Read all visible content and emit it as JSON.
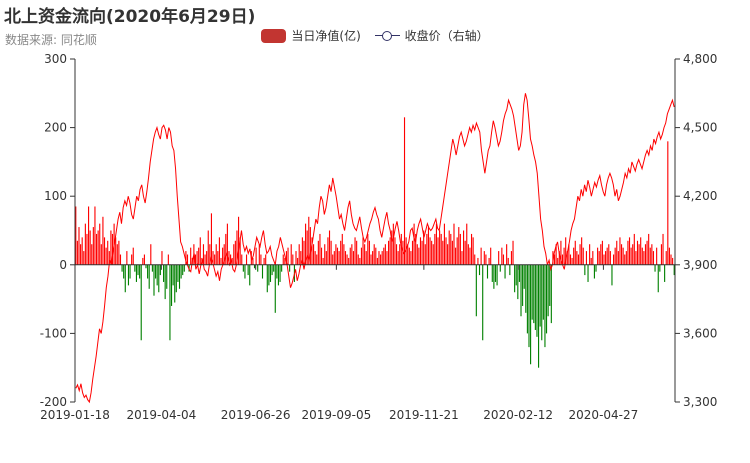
{
  "title": "北上资金流向(2020年6月29日)",
  "subtitle": "数据来源: 同花顺",
  "legend": {
    "bar_label": "当日净值(亿)",
    "line_label": "收盘价（右轴）"
  },
  "colors": {
    "positive_bar": "#ff0000",
    "negative_bar": "#008000",
    "line": "#ff0000",
    "legend_bar": "#c23531",
    "axis": "#333333"
  },
  "chart_data": {
    "type": "bar+line",
    "x_start": "2019-01-18",
    "x_end": "2020-06-29",
    "x_ticks": [
      "2019-01-18",
      "2019-04-04",
      "2019-06-26",
      "2019-09-05",
      "2019-11-21",
      "2020-02-12",
      "2020-04-27"
    ],
    "y_left": {
      "ticks": [
        -200,
        -100,
        0,
        100,
        200,
        300
      ],
      "min": -200,
      "max": 300
    },
    "y_right": {
      "ticks": [
        "3,300",
        "3,600",
        "3,900",
        "4,200",
        "4,500",
        "4,800"
      ],
      "min": 3300,
      "max": 4800
    },
    "series": [
      {
        "name": "当日净值(亿)",
        "kind": "bar",
        "values": [
          85,
          35,
          55,
          30,
          40,
          20,
          60,
          45,
          85,
          50,
          30,
          55,
          85,
          45,
          50,
          60,
          30,
          70,
          40,
          25,
          35,
          20,
          50,
          45,
          60,
          40,
          30,
          35,
          15,
          -10,
          -20,
          -40,
          20,
          -30,
          -20,
          15,
          25,
          -10,
          -25,
          -15,
          -20,
          -110,
          10,
          15,
          -5,
          -20,
          -35,
          30,
          -10,
          -45,
          -20,
          -30,
          -40,
          -15,
          20,
          -25,
          -50,
          -35,
          15,
          -110,
          -60,
          -30,
          -55,
          -40,
          -25,
          -35,
          -20,
          -15,
          -10,
          20,
          15,
          -10,
          25,
          10,
          30,
          15,
          20,
          25,
          40,
          10,
          30,
          15,
          20,
          50,
          30,
          75,
          20,
          15,
          30,
          20,
          40,
          10,
          25,
          30,
          45,
          60,
          20,
          15,
          10,
          30,
          35,
          50,
          70,
          40,
          15,
          -10,
          -20,
          15,
          -15,
          -30,
          20,
          10,
          -5,
          25,
          -10,
          30,
          15,
          -20,
          10,
          15,
          -40,
          -30,
          -25,
          -15,
          -10,
          -70,
          -20,
          -30,
          -25,
          -10,
          15,
          10,
          20,
          25,
          -10,
          30,
          15,
          -25,
          20,
          10,
          30,
          20,
          40,
          35,
          60,
          50,
          70,
          55,
          40,
          30,
          20,
          15,
          35,
          45,
          25,
          10,
          30,
          20,
          40,
          50,
          35,
          15,
          20,
          30,
          25,
          20,
          35,
          45,
          30,
          20,
          15,
          10,
          25,
          30,
          20,
          40,
          35,
          15,
          10,
          25,
          40,
          30,
          20,
          45,
          35,
          15,
          20,
          30,
          25,
          10,
          20,
          15,
          20,
          25,
          30,
          20,
          35,
          40,
          50,
          60,
          40,
          30,
          20,
          30,
          45,
          35,
          215,
          40,
          30,
          25,
          20,
          35,
          60,
          45,
          30,
          25,
          40,
          35,
          50,
          30,
          45,
          55,
          40,
          35,
          30,
          45,
          60,
          40,
          50,
          45,
          35,
          60,
          40,
          30,
          50,
          45,
          35,
          60,
          25,
          40,
          55,
          45,
          20,
          50,
          35,
          60,
          30,
          25,
          45,
          40,
          15,
          -75,
          10,
          -15,
          25,
          -110,
          20,
          15,
          -20,
          10,
          25,
          -25,
          -35,
          -25,
          -30,
          20,
          -10,
          25,
          15,
          -20,
          30,
          10,
          -15,
          20,
          35,
          -40,
          -30,
          -50,
          -25,
          -75,
          -60,
          -35,
          -70,
          -100,
          -120,
          -145,
          -80,
          -85,
          -95,
          -105,
          -150,
          -90,
          -110,
          -80,
          -120,
          -100,
          -75,
          -60,
          -85,
          20,
          15,
          30,
          10,
          20,
          35,
          15,
          25,
          40,
          20,
          30,
          15,
          10,
          25,
          35,
          20,
          15,
          30,
          40,
          25,
          -15,
          20,
          -25,
          30,
          10,
          20,
          -20,
          -10,
          25,
          20,
          30,
          35,
          15,
          20,
          25,
          30,
          20,
          -30,
          15,
          25,
          35,
          20,
          40,
          30,
          25,
          15,
          20,
          35,
          40,
          25,
          30,
          45,
          20,
          35,
          30,
          40,
          25,
          20,
          30,
          35,
          45,
          25,
          30,
          20,
          -10,
          25,
          -40,
          -10,
          30,
          45,
          -25,
          20,
          180,
          25,
          15,
          10,
          -15
        ]
      },
      {
        "name": "收盘价（右轴）",
        "kind": "line",
        "axis": "right",
        "values": [
          3360,
          3375,
          3350,
          3380,
          3340,
          3320,
          3330,
          3310,
          3300,
          3340,
          3400,
          3450,
          3500,
          3560,
          3620,
          3600,
          3650,
          3720,
          3800,
          3850,
          3920,
          3900,
          3960,
          4000,
          4050,
          4100,
          4130,
          4080,
          4150,
          4180,
          4160,
          4200,
          4170,
          4120,
          4100,
          4150,
          4200,
          4180,
          4230,
          4250,
          4200,
          4170,
          4220,
          4280,
          4350,
          4400,
          4450,
          4480,
          4500,
          4470,
          4450,
          4500,
          4510,
          4490,
          4450,
          4500,
          4480,
          4420,
          4400,
          4320,
          4200,
          4100,
          4000,
          3980,
          3950,
          3920,
          3900,
          3880,
          3870,
          3920,
          3950,
          3880,
          3900,
          3860,
          3900,
          3920,
          3880,
          3870,
          3850,
          3900,
          3930,
          3910,
          3880,
          3850,
          3870,
          3830,
          3880,
          3900,
          3920,
          3950,
          3930,
          3900,
          3920,
          3880,
          3870,
          3900,
          3950,
          4000,
          4050,
          3990,
          3960,
          3980,
          3950,
          3970,
          3920,
          3940,
          3980,
          4020,
          4000,
          3980,
          4020,
          4050,
          3990,
          3950,
          3960,
          3980,
          3940,
          3920,
          3900,
          3960,
          3980,
          4020,
          3990,
          3960,
          3930,
          3900,
          3850,
          3800,
          3820,
          3850,
          3880,
          3830,
          3860,
          3900,
          3920,
          3880,
          3920,
          3940,
          3920,
          3960,
          4000,
          4050,
          4100,
          4080,
          4150,
          4200,
          4180,
          4120,
          4150,
          4200,
          4250,
          4220,
          4280,
          4240,
          4200,
          4150,
          4100,
          4120,
          4080,
          4050,
          4100,
          4150,
          4180,
          4120,
          4080,
          4060,
          4050,
          4080,
          4110,
          4060,
          4020,
          4000,
          4020,
          4050,
          4080,
          4100,
          4130,
          4150,
          4120,
          4100,
          4050,
          4020,
          4060,
          4100,
          4130,
          4080,
          4050,
          4000,
          4020,
          4060,
          4090,
          4050,
          4000,
          3970,
          3950,
          3960,
          3980,
          4000,
          4050,
          4060,
          4020,
          4000,
          4050,
          4080,
          4100,
          4060,
          4020,
          4050,
          4080,
          4060,
          4050,
          4060,
          4080,
          4100,
          4060,
          4050,
          4100,
          4150,
          4200,
          4250,
          4300,
          4350,
          4400,
          4450,
          4420,
          4380,
          4420,
          4460,
          4480,
          4450,
          4420,
          4440,
          4470,
          4500,
          4480,
          4510,
          4490,
          4520,
          4500,
          4480,
          4400,
          4350,
          4300,
          4350,
          4400,
          4420,
          4480,
          4530,
          4500,
          4460,
          4420,
          4440,
          4480,
          4530,
          4560,
          4580,
          4620,
          4600,
          4580,
          4550,
          4500,
          4450,
          4400,
          4420,
          4480,
          4600,
          4650,
          4620,
          4540,
          4450,
          4420,
          4380,
          4350,
          4300,
          4200,
          4100,
          4050,
          3980,
          3950,
          3900,
          3920,
          3880,
          3900,
          3950,
          3980,
          4000,
          3950,
          3920,
          3900,
          3880,
          3930,
          3960,
          4000,
          4050,
          4080,
          4100,
          4150,
          4200,
          4180,
          4230,
          4200,
          4250,
          4220,
          4270,
          4240,
          4200,
          4230,
          4260,
          4240,
          4270,
          4290,
          4250,
          4220,
          4200,
          4250,
          4280,
          4300,
          4280,
          4250,
          4200,
          4230,
          4180,
          4200,
          4230,
          4260,
          4300,
          4280,
          4320,
          4300,
          4350,
          4330,
          4310,
          4340,
          4360,
          4340,
          4320,
          4350,
          4380,
          4400,
          4380,
          4420,
          4400,
          4450,
          4430,
          4460,
          4480,
          4450,
          4470,
          4500,
          4520,
          4560,
          4580,
          4600,
          4620,
          4590
        ]
      }
    ]
  }
}
